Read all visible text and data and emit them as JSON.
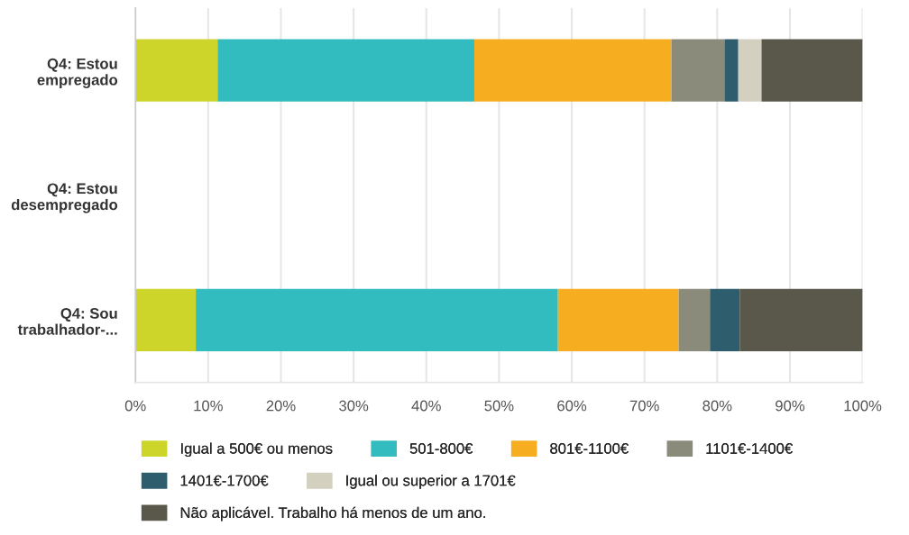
{
  "chart_data": {
    "type": "bar",
    "orientation": "horizontal",
    "stacked": true,
    "categories": [
      "Q4: Estou\nempregado",
      "Q4: Estou\ndesempregado",
      "Q4: Sou\ntrabalhador-..."
    ],
    "series": [
      {
        "name": "Igual a 500€ ou menos",
        "color": "#cdd42a",
        "values": [
          11.3,
          null,
          8.3
        ]
      },
      {
        "name": "501-800€",
        "color": "#33bcc0",
        "values": [
          35.3,
          null,
          49.8
        ]
      },
      {
        "name": "801€-1100€",
        "color": "#f6ae20",
        "values": [
          27.1,
          null,
          16.6
        ]
      },
      {
        "name": "1101€-1400€",
        "color": "#8a8b7b",
        "values": [
          7.3,
          null,
          4.3
        ]
      },
      {
        "name": "1401€-1700€",
        "color": "#2e5e6d",
        "values": [
          1.9,
          null,
          4.1
        ]
      },
      {
        "name": "Igual ou superior a 1701€",
        "color": "#d3d0c0",
        "values": [
          3.2,
          null,
          0
        ]
      },
      {
        "name": "Não aplicável. Trabalho há menos de um ano.",
        "color": "#5a584a",
        "values": [
          13.9,
          null,
          16.9
        ]
      }
    ],
    "xlim": [
      0,
      100
    ],
    "xticks": [
      {
        "value": 0,
        "label": "0%"
      },
      {
        "value": 10,
        "label": "10%"
      },
      {
        "value": 20,
        "label": "20%"
      },
      {
        "value": 30,
        "label": "30%"
      },
      {
        "value": 40,
        "label": "40%"
      },
      {
        "value": 50,
        "label": "50%"
      },
      {
        "value": 60,
        "label": "60%"
      },
      {
        "value": 70,
        "label": "70%"
      },
      {
        "value": 80,
        "label": "80%"
      },
      {
        "value": 90,
        "label": "90%"
      },
      {
        "value": 100,
        "label": "100%"
      }
    ],
    "grid": "x",
    "legend": "bottom"
  }
}
